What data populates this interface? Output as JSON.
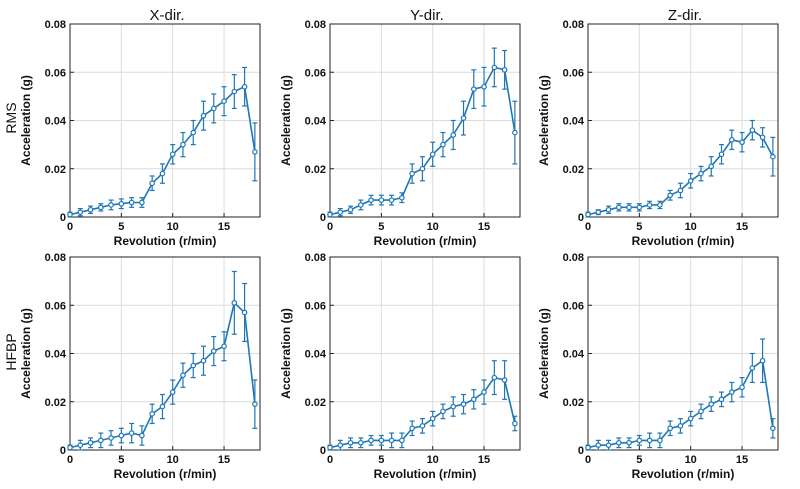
{
  "columns": [
    "X-dir.",
    "Y-dir.",
    "Z-dir."
  ],
  "rows": [
    "RMS",
    "HFBP"
  ],
  "series_color": "#1f77b4",
  "chart_data": [
    {
      "type": "line",
      "column": "X-dir.",
      "row": "RMS",
      "xlabel": "Revolution (r/min)",
      "ylabel": "Acceleration (g)",
      "xlim": [
        0,
        18.5
      ],
      "ylim": [
        0,
        0.08
      ],
      "xticks": [
        0,
        5,
        10,
        15
      ],
      "yticks": [
        0,
        0.02,
        0.04,
        0.06,
        0.08
      ],
      "grid": true,
      "x": [
        0,
        1,
        2,
        3,
        4,
        5,
        6,
        7,
        8,
        9,
        10,
        11,
        12,
        13,
        14,
        15,
        16,
        17,
        18
      ],
      "y": [
        0.001,
        0.002,
        0.003,
        0.004,
        0.005,
        0.0055,
        0.006,
        0.006,
        0.014,
        0.018,
        0.026,
        0.03,
        0.035,
        0.042,
        0.045,
        0.048,
        0.052,
        0.054,
        0.027
      ],
      "err": [
        0.001,
        0.0015,
        0.0015,
        0.0015,
        0.002,
        0.002,
        0.002,
        0.002,
        0.003,
        0.004,
        0.004,
        0.005,
        0.005,
        0.006,
        0.006,
        0.006,
        0.007,
        0.008,
        0.012
      ]
    },
    {
      "type": "line",
      "column": "Y-dir.",
      "row": "RMS",
      "xlabel": "Revolution (r/min)",
      "ylabel": "Acceleration (g)",
      "xlim": [
        0,
        18.5
      ],
      "ylim": [
        0,
        0.08
      ],
      "xticks": [
        0,
        5,
        10,
        15
      ],
      "yticks": [
        0,
        0.02,
        0.04,
        0.06,
        0.08
      ],
      "grid": true,
      "x": [
        0,
        1,
        2,
        3,
        4,
        5,
        6,
        7,
        8,
        9,
        10,
        11,
        12,
        13,
        14,
        15,
        16,
        17,
        18
      ],
      "y": [
        0.001,
        0.002,
        0.003,
        0.005,
        0.007,
        0.007,
        0.007,
        0.008,
        0.018,
        0.02,
        0.026,
        0.03,
        0.034,
        0.041,
        0.053,
        0.054,
        0.062,
        0.061,
        0.035
      ],
      "err": [
        0.001,
        0.0015,
        0.0015,
        0.002,
        0.002,
        0.002,
        0.002,
        0.002,
        0.004,
        0.005,
        0.005,
        0.005,
        0.006,
        0.007,
        0.008,
        0.008,
        0.008,
        0.008,
        0.013
      ]
    },
    {
      "type": "line",
      "column": "Z-dir.",
      "row": "RMS",
      "xlabel": "Revolution (r/min)",
      "ylabel": "Acceleration (g)",
      "xlim": [
        0,
        18.5
      ],
      "ylim": [
        0,
        0.08
      ],
      "xticks": [
        0,
        5,
        10,
        15
      ],
      "yticks": [
        0,
        0.02,
        0.04,
        0.06,
        0.08
      ],
      "grid": true,
      "x": [
        0,
        1,
        2,
        3,
        4,
        5,
        6,
        7,
        8,
        9,
        10,
        11,
        12,
        13,
        14,
        15,
        16,
        17,
        18
      ],
      "y": [
        0.001,
        0.002,
        0.003,
        0.004,
        0.004,
        0.004,
        0.005,
        0.005,
        0.009,
        0.011,
        0.015,
        0.018,
        0.021,
        0.026,
        0.032,
        0.031,
        0.036,
        0.033,
        0.025
      ],
      "err": [
        0.001,
        0.001,
        0.0015,
        0.0015,
        0.0015,
        0.0015,
        0.0015,
        0.0015,
        0.002,
        0.003,
        0.003,
        0.003,
        0.004,
        0.004,
        0.004,
        0.004,
        0.004,
        0.004,
        0.008
      ]
    },
    {
      "type": "line",
      "column": "X-dir.",
      "row": "HFBP",
      "xlabel": "Revolution (r/min)",
      "ylabel": "Acceleration (g)",
      "xlim": [
        0,
        18.5
      ],
      "ylim": [
        0,
        0.08
      ],
      "xticks": [
        0,
        5,
        10,
        15
      ],
      "yticks": [
        0,
        0.02,
        0.04,
        0.06,
        0.08
      ],
      "grid": true,
      "x": [
        0,
        1,
        2,
        3,
        4,
        5,
        6,
        7,
        8,
        9,
        10,
        11,
        12,
        13,
        14,
        15,
        16,
        17,
        18
      ],
      "y": [
        0.001,
        0.002,
        0.003,
        0.004,
        0.005,
        0.006,
        0.007,
        0.006,
        0.015,
        0.018,
        0.024,
        0.031,
        0.035,
        0.037,
        0.041,
        0.043,
        0.061,
        0.057,
        0.019
      ],
      "err": [
        0.001,
        0.002,
        0.002,
        0.003,
        0.003,
        0.003,
        0.004,
        0.004,
        0.004,
        0.005,
        0.005,
        0.005,
        0.005,
        0.006,
        0.006,
        0.006,
        0.013,
        0.012,
        0.01
      ]
    },
    {
      "type": "line",
      "column": "Y-dir.",
      "row": "HFBP",
      "xlabel": "Revolution (r/min)",
      "ylabel": "Acceleration (g)",
      "xlim": [
        0,
        18.5
      ],
      "ylim": [
        0,
        0.08
      ],
      "xticks": [
        0,
        5,
        10,
        15
      ],
      "yticks": [
        0,
        0.02,
        0.04,
        0.06,
        0.08
      ],
      "grid": true,
      "x": [
        0,
        1,
        2,
        3,
        4,
        5,
        6,
        7,
        8,
        9,
        10,
        11,
        12,
        13,
        14,
        15,
        16,
        17,
        18
      ],
      "y": [
        0.001,
        0.002,
        0.003,
        0.003,
        0.004,
        0.004,
        0.004,
        0.004,
        0.009,
        0.01,
        0.013,
        0.016,
        0.018,
        0.019,
        0.021,
        0.024,
        0.03,
        0.029,
        0.011
      ],
      "err": [
        0.001,
        0.002,
        0.002,
        0.002,
        0.002,
        0.002,
        0.003,
        0.003,
        0.003,
        0.003,
        0.003,
        0.003,
        0.004,
        0.004,
        0.004,
        0.005,
        0.007,
        0.008,
        0.003
      ]
    },
    {
      "type": "line",
      "column": "Z-dir.",
      "row": "HFBP",
      "xlabel": "Revolution (r/min)",
      "ylabel": "Acceleration (g)",
      "xlim": [
        0,
        18.5
      ],
      "ylim": [
        0,
        0.08
      ],
      "xticks": [
        0,
        5,
        10,
        15
      ],
      "yticks": [
        0,
        0.02,
        0.04,
        0.06,
        0.08
      ],
      "grid": true,
      "x": [
        0,
        1,
        2,
        3,
        4,
        5,
        6,
        7,
        8,
        9,
        10,
        11,
        12,
        13,
        14,
        15,
        16,
        17,
        18
      ],
      "y": [
        0.001,
        0.002,
        0.002,
        0.003,
        0.003,
        0.004,
        0.004,
        0.004,
        0.009,
        0.01,
        0.013,
        0.016,
        0.019,
        0.021,
        0.024,
        0.026,
        0.034,
        0.037,
        0.009
      ],
      "err": [
        0.001,
        0.002,
        0.002,
        0.002,
        0.002,
        0.002,
        0.003,
        0.003,
        0.003,
        0.003,
        0.003,
        0.003,
        0.003,
        0.003,
        0.004,
        0.004,
        0.006,
        0.009,
        0.004
      ]
    }
  ]
}
